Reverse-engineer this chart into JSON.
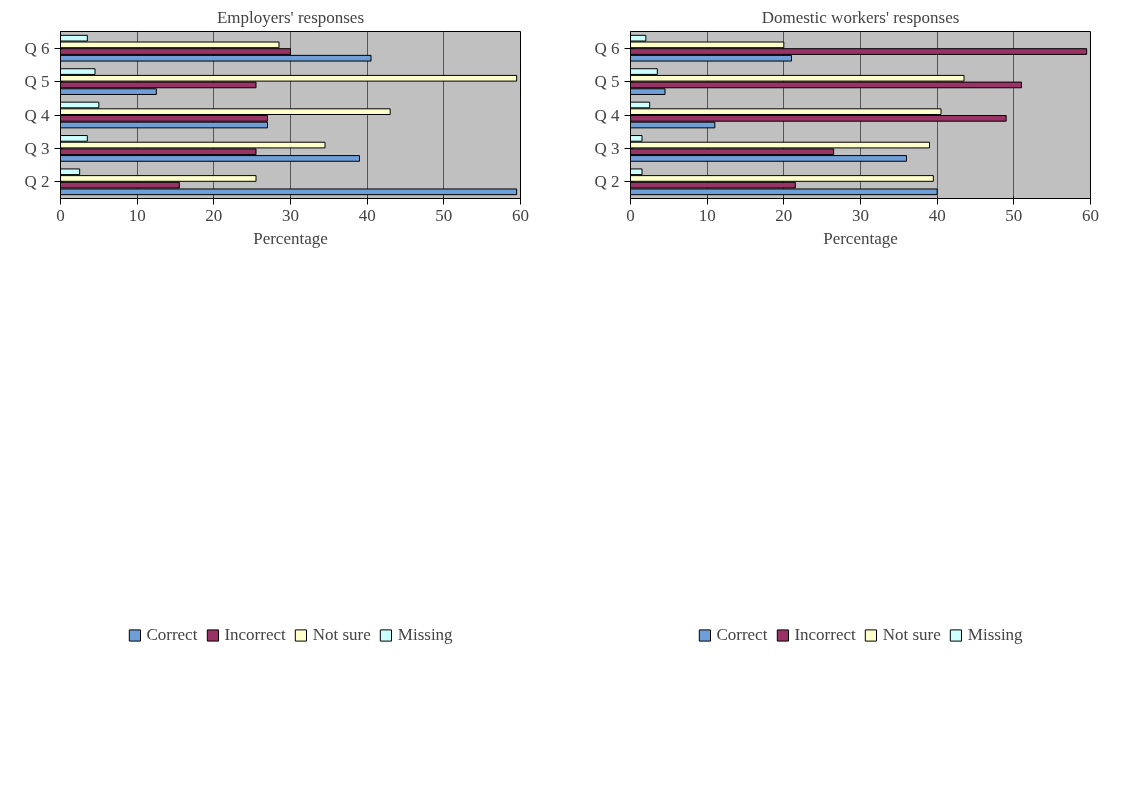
{
  "chart_data": [
    {
      "type": "bar",
      "orientation": "horizontal",
      "title": "Employers' responses",
      "xlabel": "Percentage",
      "categories": [
        "Q 6",
        "Q 5",
        "Q 4",
        "Q 3",
        "Q 2"
      ],
      "xlim": [
        0,
        60
      ],
      "xticks": [
        0,
        10,
        20,
        30,
        40,
        50,
        60
      ],
      "grid": "x",
      "legend": "bottom",
      "series": [
        {
          "name": "Correct",
          "color": "#6f9fd8",
          "values": [
            40.5,
            12.5,
            27,
            39,
            59.5
          ]
        },
        {
          "name": "Incorrect",
          "color": "#993366",
          "values": [
            30,
            25.5,
            27,
            25.5,
            15.5
          ]
        },
        {
          "name": "Not sure",
          "color": "#ffffcc",
          "values": [
            28.5,
            59.5,
            43,
            34.5,
            25.5
          ]
        },
        {
          "name": "Missing",
          "color": "#ccffff",
          "values": [
            3.5,
            4.5,
            5,
            3.5,
            2.5
          ]
        }
      ]
    },
    {
      "type": "bar",
      "orientation": "horizontal",
      "title": "Domestic workers' responses",
      "xlabel": "Percentage",
      "categories": [
        "Q 6",
        "Q 5",
        "Q 4",
        "Q 3",
        "Q 2"
      ],
      "xlim": [
        0,
        60
      ],
      "xticks": [
        0,
        10,
        20,
        30,
        40,
        50,
        60
      ],
      "grid": "x",
      "legend": "bottom",
      "series": [
        {
          "name": "Correct",
          "color": "#6f9fd8",
          "values": [
            21,
            4.5,
            11,
            36,
            40
          ]
        },
        {
          "name": "Incorrect",
          "color": "#993366",
          "values": [
            59.5,
            51,
            49,
            26.5,
            21.5
          ]
        },
        {
          "name": "Not sure",
          "color": "#ffffcc",
          "values": [
            20,
            43.5,
            40.5,
            39,
            39.5
          ]
        },
        {
          "name": "Missing",
          "color": "#ccffff",
          "values": [
            2,
            3.5,
            2.5,
            1.5,
            1.5
          ]
        }
      ]
    }
  ]
}
